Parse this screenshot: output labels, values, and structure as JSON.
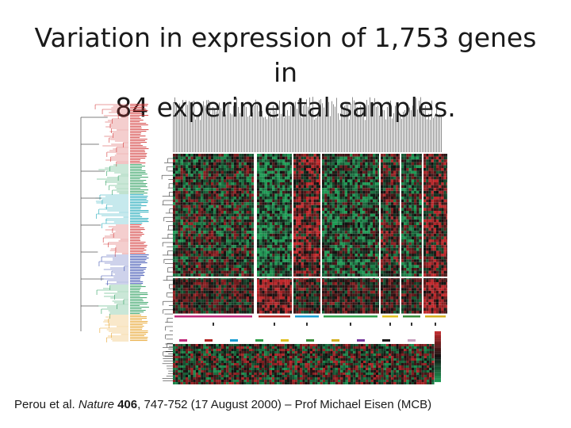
{
  "slide": {
    "title_line1": "Variation in expression of 1,753 genes in",
    "title_line2": "84 experimental samples."
  },
  "citation": {
    "authors": "Perou et al. ",
    "journal": "Nature",
    "volume": "406",
    "pages_date": ", 747-752 (17 August 2000) – Prof Michael Eisen (MCB)"
  },
  "figure": {
    "colors": {
      "heat_green": "#1f9a55",
      "heat_red": "#c0282b",
      "heat_black": "#101010",
      "dendro_red": "#d43a3a",
      "dendro_green": "#2fa060",
      "dendro_cyan": "#1aa7b8",
      "dendro_orange": "#e7a42e",
      "dendro_blue": "#3a4fb0"
    },
    "cluster_marker_colors": [
      "#c0287a",
      "#b32424",
      "#1a9fd4",
      "#2fa04a",
      "#e0c020",
      "#3a8f3a",
      "#d4b020",
      "#7a3aa0",
      "#1a1a1a",
      "#c8a0c0",
      "#c0c0c0"
    ]
  }
}
